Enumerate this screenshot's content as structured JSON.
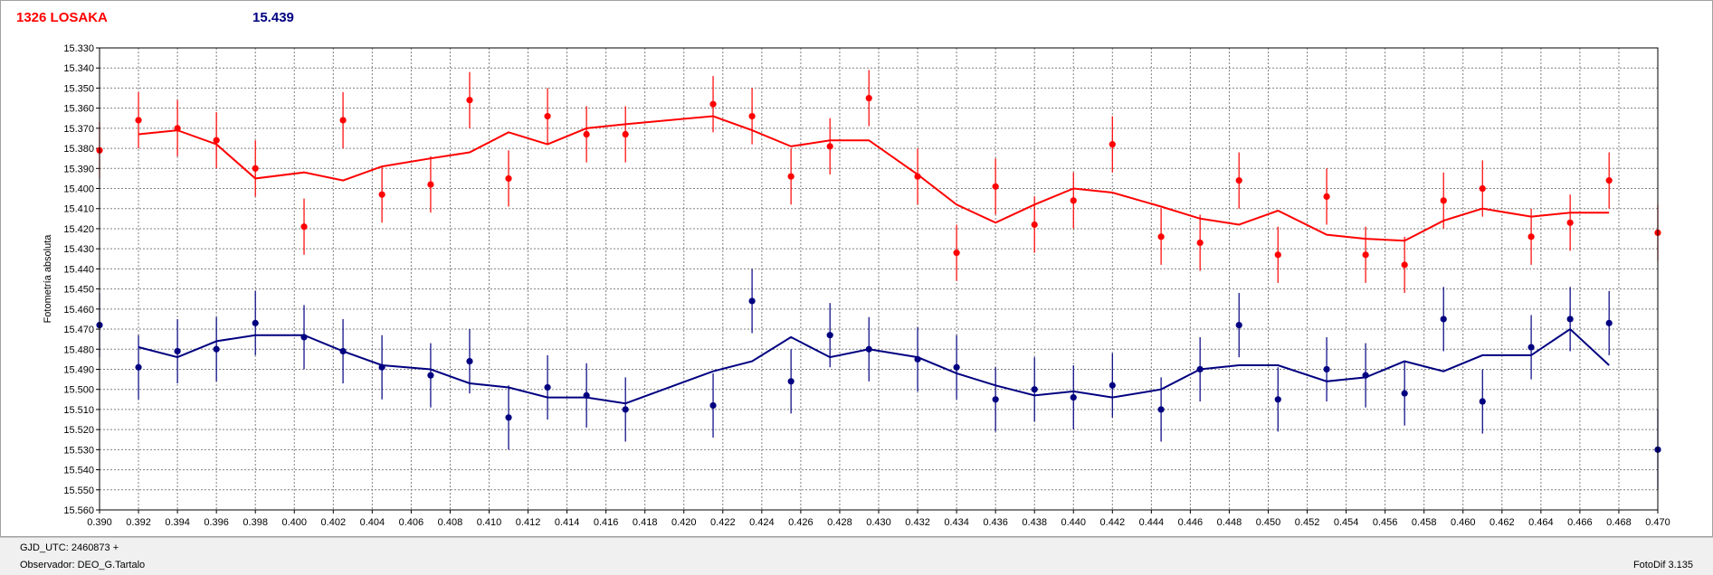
{
  "header": {
    "star_label": "1326 LOSAKA",
    "comp_value": "15.439"
  },
  "footer": {
    "gjd_label": "GJD_UTC: 2460873 +",
    "observer_label": "Observador: DEO_G.Tartalo",
    "version_label": "FotoDif 3.135"
  },
  "chart_data": {
    "type": "scatter",
    "ylabel": "Fotometría absoluta",
    "xlim": [
      0.39,
      0.47
    ],
    "ylim": [
      15.33,
      15.56
    ],
    "y_inverted": true,
    "grid": true,
    "x_ticks": [
      "0.390",
      "0.392",
      "0.394",
      "0.396",
      "0.398",
      "0.400",
      "0.402",
      "0.404",
      "0.406",
      "0.408",
      "0.410",
      "0.412",
      "0.414",
      "0.416",
      "0.418",
      "0.420",
      "0.422",
      "0.424",
      "0.426",
      "0.428",
      "0.430",
      "0.432",
      "0.434",
      "0.436",
      "0.438",
      "0.440",
      "0.442",
      "0.444",
      "0.446",
      "0.448",
      "0.450",
      "0.452",
      "0.454",
      "0.456",
      "0.458",
      "0.460",
      "0.462",
      "0.464",
      "0.466",
      "0.468",
      "0.470"
    ],
    "y_ticks": [
      "15.330",
      "15.340",
      "15.350",
      "15.360",
      "15.370",
      "15.380",
      "15.390",
      "15.400",
      "15.410",
      "15.420",
      "15.430",
      "15.440",
      "15.450",
      "15.460",
      "15.470",
      "15.480",
      "15.490",
      "15.500",
      "15.510",
      "15.520",
      "15.530",
      "15.540",
      "15.550",
      "15.560"
    ],
    "series": [
      {
        "color": "#ff0000",
        "points": [
          {
            "x": 0.39,
            "y": 15.381,
            "err": 0.014
          },
          {
            "x": 0.392,
            "y": 15.366,
            "err": 0.014
          },
          {
            "x": 0.394,
            "y": 15.37,
            "err": 0.014
          },
          {
            "x": 0.396,
            "y": 15.376,
            "err": 0.014
          },
          {
            "x": 0.398,
            "y": 15.39,
            "err": 0.014
          },
          {
            "x": 0.4005,
            "y": 15.419,
            "err": 0.014
          },
          {
            "x": 0.4025,
            "y": 15.366,
            "err": 0.014
          },
          {
            "x": 0.4045,
            "y": 15.403,
            "err": 0.014
          },
          {
            "x": 0.407,
            "y": 15.398,
            "err": 0.014
          },
          {
            "x": 0.409,
            "y": 15.356,
            "err": 0.014
          },
          {
            "x": 0.411,
            "y": 15.395,
            "err": 0.014
          },
          {
            "x": 0.413,
            "y": 15.364,
            "err": 0.014
          },
          {
            "x": 0.415,
            "y": 15.373,
            "err": 0.014
          },
          {
            "x": 0.417,
            "y": 15.373,
            "err": 0.014
          },
          {
            "x": 0.4215,
            "y": 15.358,
            "err": 0.014
          },
          {
            "x": 0.4235,
            "y": 15.364,
            "err": 0.014
          },
          {
            "x": 0.4255,
            "y": 15.394,
            "err": 0.014
          },
          {
            "x": 0.4275,
            "y": 15.379,
            "err": 0.014
          },
          {
            "x": 0.4295,
            "y": 15.355,
            "err": 0.014
          },
          {
            "x": 0.432,
            "y": 15.394,
            "err": 0.014
          },
          {
            "x": 0.434,
            "y": 15.432,
            "err": 0.014
          },
          {
            "x": 0.436,
            "y": 15.399,
            "err": 0.014
          },
          {
            "x": 0.438,
            "y": 15.418,
            "err": 0.014
          },
          {
            "x": 0.44,
            "y": 15.406,
            "err": 0.014
          },
          {
            "x": 0.442,
            "y": 15.378,
            "err": 0.014
          },
          {
            "x": 0.4445,
            "y": 15.424,
            "err": 0.014
          },
          {
            "x": 0.4465,
            "y": 15.427,
            "err": 0.014
          },
          {
            "x": 0.4485,
            "y": 15.396,
            "err": 0.014
          },
          {
            "x": 0.4505,
            "y": 15.433,
            "err": 0.014
          },
          {
            "x": 0.453,
            "y": 15.404,
            "err": 0.014
          },
          {
            "x": 0.455,
            "y": 15.433,
            "err": 0.014
          },
          {
            "x": 0.457,
            "y": 15.438,
            "err": 0.014
          },
          {
            "x": 0.459,
            "y": 15.406,
            "err": 0.014
          },
          {
            "x": 0.461,
            "y": 15.4,
            "err": 0.014
          },
          {
            "x": 0.4635,
            "y": 15.424,
            "err": 0.014
          },
          {
            "x": 0.4655,
            "y": 15.417,
            "err": 0.014
          },
          {
            "x": 0.4675,
            "y": 15.396,
            "err": 0.014
          },
          {
            "x": 0.47,
            "y": 15.422,
            "err": 0.014
          }
        ],
        "line": [
          {
            "x": 0.392,
            "y": 15.373
          },
          {
            "x": 0.394,
            "y": 15.371
          },
          {
            "x": 0.396,
            "y": 15.378
          },
          {
            "x": 0.398,
            "y": 15.395
          },
          {
            "x": 0.4005,
            "y": 15.392
          },
          {
            "x": 0.4025,
            "y": 15.396
          },
          {
            "x": 0.4045,
            "y": 15.389
          },
          {
            "x": 0.407,
            "y": 15.385
          },
          {
            "x": 0.409,
            "y": 15.382
          },
          {
            "x": 0.411,
            "y": 15.372
          },
          {
            "x": 0.413,
            "y": 15.378
          },
          {
            "x": 0.415,
            "y": 15.37
          },
          {
            "x": 0.417,
            "y": 15.368
          },
          {
            "x": 0.4215,
            "y": 15.364
          },
          {
            "x": 0.4235,
            "y": 15.371
          },
          {
            "x": 0.4255,
            "y": 15.379
          },
          {
            "x": 0.4275,
            "y": 15.376
          },
          {
            "x": 0.4295,
            "y": 15.376
          },
          {
            "x": 0.432,
            "y": 15.393
          },
          {
            "x": 0.434,
            "y": 15.408
          },
          {
            "x": 0.436,
            "y": 15.417
          },
          {
            "x": 0.438,
            "y": 15.408
          },
          {
            "x": 0.44,
            "y": 15.4
          },
          {
            "x": 0.442,
            "y": 15.402
          },
          {
            "x": 0.4445,
            "y": 15.409
          },
          {
            "x": 0.4465,
            "y": 15.415
          },
          {
            "x": 0.4485,
            "y": 15.418
          },
          {
            "x": 0.4505,
            "y": 15.411
          },
          {
            "x": 0.453,
            "y": 15.423
          },
          {
            "x": 0.455,
            "y": 15.425
          },
          {
            "x": 0.457,
            "y": 15.426
          },
          {
            "x": 0.459,
            "y": 15.416
          },
          {
            "x": 0.461,
            "y": 15.41
          },
          {
            "x": 0.4635,
            "y": 15.414
          },
          {
            "x": 0.4655,
            "y": 15.412
          },
          {
            "x": 0.4675,
            "y": 15.412
          }
        ]
      },
      {
        "color": "#000080",
        "points": [
          {
            "x": 0.39,
            "y": 15.468,
            "err": 0.016
          },
          {
            "x": 0.392,
            "y": 15.489,
            "err": 0.016
          },
          {
            "x": 0.394,
            "y": 15.481,
            "err": 0.016
          },
          {
            "x": 0.396,
            "y": 15.48,
            "err": 0.016
          },
          {
            "x": 0.398,
            "y": 15.467,
            "err": 0.016
          },
          {
            "x": 0.4005,
            "y": 15.474,
            "err": 0.016
          },
          {
            "x": 0.4025,
            "y": 15.481,
            "err": 0.016
          },
          {
            "x": 0.4045,
            "y": 15.489,
            "err": 0.016
          },
          {
            "x": 0.407,
            "y": 15.493,
            "err": 0.016
          },
          {
            "x": 0.409,
            "y": 15.486,
            "err": 0.016
          },
          {
            "x": 0.411,
            "y": 15.514,
            "err": 0.016
          },
          {
            "x": 0.413,
            "y": 15.499,
            "err": 0.016
          },
          {
            "x": 0.415,
            "y": 15.503,
            "err": 0.016
          },
          {
            "x": 0.417,
            "y": 15.51,
            "err": 0.016
          },
          {
            "x": 0.4215,
            "y": 15.508,
            "err": 0.016
          },
          {
            "x": 0.4235,
            "y": 15.456,
            "err": 0.016
          },
          {
            "x": 0.4255,
            "y": 15.496,
            "err": 0.016
          },
          {
            "x": 0.4275,
            "y": 15.473,
            "err": 0.016
          },
          {
            "x": 0.4295,
            "y": 15.48,
            "err": 0.016
          },
          {
            "x": 0.432,
            "y": 15.485,
            "err": 0.016
          },
          {
            "x": 0.434,
            "y": 15.489,
            "err": 0.016
          },
          {
            "x": 0.436,
            "y": 15.505,
            "err": 0.016
          },
          {
            "x": 0.438,
            "y": 15.5,
            "err": 0.016
          },
          {
            "x": 0.44,
            "y": 15.504,
            "err": 0.016
          },
          {
            "x": 0.442,
            "y": 15.498,
            "err": 0.016
          },
          {
            "x": 0.4445,
            "y": 15.51,
            "err": 0.016
          },
          {
            "x": 0.4465,
            "y": 15.49,
            "err": 0.016
          },
          {
            "x": 0.4485,
            "y": 15.468,
            "err": 0.016
          },
          {
            "x": 0.4505,
            "y": 15.505,
            "err": 0.016
          },
          {
            "x": 0.453,
            "y": 15.49,
            "err": 0.016
          },
          {
            "x": 0.455,
            "y": 15.493,
            "err": 0.016
          },
          {
            "x": 0.457,
            "y": 15.502,
            "err": 0.016
          },
          {
            "x": 0.459,
            "y": 15.465,
            "err": 0.016
          },
          {
            "x": 0.461,
            "y": 15.506,
            "err": 0.016
          },
          {
            "x": 0.4635,
            "y": 15.479,
            "err": 0.016
          },
          {
            "x": 0.4655,
            "y": 15.465,
            "err": 0.016
          },
          {
            "x": 0.4675,
            "y": 15.467,
            "err": 0.016
          },
          {
            "x": 0.47,
            "y": 15.53,
            "err": 0.02
          }
        ],
        "line": [
          {
            "x": 0.392,
            "y": 15.479
          },
          {
            "x": 0.394,
            "y": 15.484
          },
          {
            "x": 0.396,
            "y": 15.476
          },
          {
            "x": 0.398,
            "y": 15.473
          },
          {
            "x": 0.4005,
            "y": 15.473
          },
          {
            "x": 0.4025,
            "y": 15.481
          },
          {
            "x": 0.4045,
            "y": 15.488
          },
          {
            "x": 0.407,
            "y": 15.49
          },
          {
            "x": 0.409,
            "y": 15.497
          },
          {
            "x": 0.411,
            "y": 15.499
          },
          {
            "x": 0.413,
            "y": 15.504
          },
          {
            "x": 0.415,
            "y": 15.504
          },
          {
            "x": 0.417,
            "y": 15.507
          },
          {
            "x": 0.4215,
            "y": 15.491
          },
          {
            "x": 0.4235,
            "y": 15.486
          },
          {
            "x": 0.4255,
            "y": 15.474
          },
          {
            "x": 0.4275,
            "y": 15.484
          },
          {
            "x": 0.4295,
            "y": 15.48
          },
          {
            "x": 0.432,
            "y": 15.484
          },
          {
            "x": 0.434,
            "y": 15.492
          },
          {
            "x": 0.436,
            "y": 15.498
          },
          {
            "x": 0.438,
            "y": 15.503
          },
          {
            "x": 0.44,
            "y": 15.501
          },
          {
            "x": 0.442,
            "y": 15.504
          },
          {
            "x": 0.4445,
            "y": 15.5
          },
          {
            "x": 0.4465,
            "y": 15.49
          },
          {
            "x": 0.4485,
            "y": 15.488
          },
          {
            "x": 0.4505,
            "y": 15.488
          },
          {
            "x": 0.453,
            "y": 15.496
          },
          {
            "x": 0.455,
            "y": 15.494
          },
          {
            "x": 0.457,
            "y": 15.486
          },
          {
            "x": 0.459,
            "y": 15.491
          },
          {
            "x": 0.461,
            "y": 15.483
          },
          {
            "x": 0.4635,
            "y": 15.483
          },
          {
            "x": 0.4655,
            "y": 15.47
          },
          {
            "x": 0.4675,
            "y": 15.488
          }
        ]
      }
    ]
  }
}
